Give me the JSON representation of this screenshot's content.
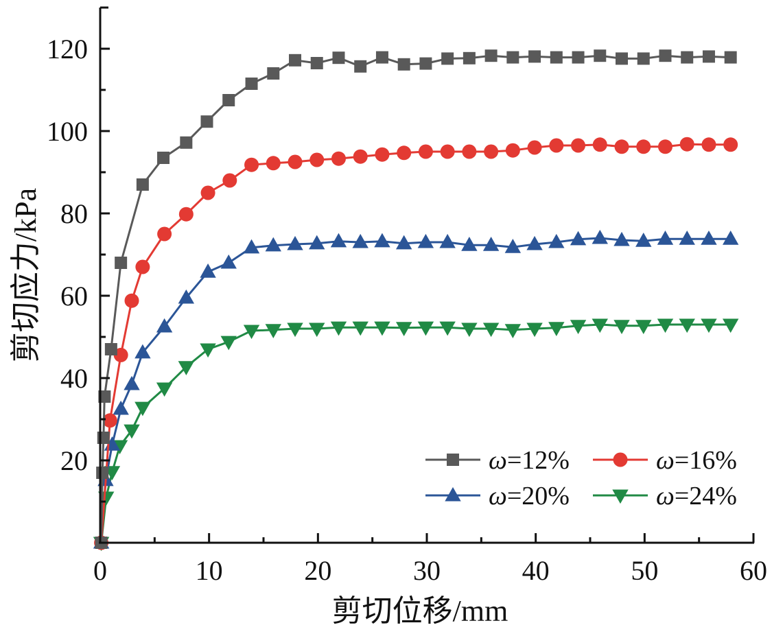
{
  "chart_data": {
    "type": "line",
    "title": "",
    "xlabel": "剪切位移/mm",
    "ylabel": "剪切应力/kPa",
    "xlim": [
      0,
      60
    ],
    "ylim": [
      0,
      130
    ],
    "x_ticks": [
      0,
      10,
      20,
      30,
      40,
      50,
      60
    ],
    "x_tick_labels": [
      "0",
      "10",
      "20",
      "30",
      "40",
      "50",
      "60"
    ],
    "x_minor_step": 5,
    "y_ticks": [
      20,
      40,
      60,
      80,
      100,
      120
    ],
    "y_tick_labels": [
      "20",
      "40",
      "60",
      "80",
      "100",
      "120"
    ],
    "y_minor_step": 10,
    "grid": false,
    "legend": {
      "position": "bottom-right",
      "columns": 2
    },
    "series": [
      {
        "name": "ω=12%",
        "legend_prefix": "ω",
        "legend_suffix": "=12%",
        "color": "#595959",
        "marker": "square",
        "x": [
          0.1,
          0.2,
          0.3,
          0.4,
          1.0,
          1.9,
          3.9,
          5.8,
          7.9,
          9.8,
          11.8,
          13.9,
          15.9,
          17.9,
          19.9,
          21.9,
          23.9,
          25.9,
          27.9,
          29.9,
          31.9,
          33.9,
          35.9,
          37.9,
          39.9,
          41.9,
          43.9,
          45.9,
          47.9,
          49.9,
          51.9,
          53.9,
          55.9,
          57.9
        ],
        "y": [
          0,
          17,
          25.5,
          35.5,
          47,
          68,
          87,
          93.5,
          97.2,
          102.3,
          107.5,
          111.5,
          114,
          117.2,
          116.5,
          117.8,
          115.7,
          117.9,
          116.2,
          116.4,
          117.6,
          117.7,
          118.3,
          117.9,
          118.1,
          117.9,
          117.9,
          118.3,
          117.6,
          117.6,
          118.3,
          117.9,
          118.1,
          117.9
        ]
      },
      {
        "name": "ω=16%",
        "legend_prefix": "ω",
        "legend_suffix": "=16%",
        "color": "#e33a33",
        "marker": "circle",
        "x": [
          0.1,
          0.9,
          1.9,
          2.9,
          3.9,
          5.9,
          7.9,
          9.9,
          11.9,
          13.9,
          15.9,
          17.9,
          19.9,
          21.9,
          23.9,
          25.9,
          27.9,
          29.9,
          31.9,
          33.9,
          35.9,
          37.9,
          39.9,
          41.9,
          43.9,
          45.9,
          47.9,
          49.9,
          51.9,
          53.9,
          55.9,
          57.9
        ],
        "y": [
          0,
          29.7,
          45.6,
          58.8,
          67,
          75,
          79.8,
          85,
          88,
          91.8,
          92.2,
          92.5,
          93,
          93.3,
          93.8,
          94.3,
          94.7,
          95,
          95,
          95,
          95,
          95.3,
          96,
          96.5,
          96.5,
          96.7,
          96.2,
          96.2,
          96.2,
          96.8,
          96.7,
          96.7
        ]
      },
      {
        "name": "ω=20%",
        "legend_prefix": "ω",
        "legend_suffix": "=20%",
        "color": "#2b5597",
        "marker": "triangle-up",
        "x": [
          0.1,
          0.5,
          1.1,
          1.9,
          2.9,
          3.9,
          5.9,
          7.9,
          9.9,
          11.8,
          13.9,
          15.9,
          17.9,
          19.9,
          21.9,
          23.9,
          25.9,
          27.9,
          29.9,
          31.9,
          33.9,
          35.9,
          37.9,
          39.9,
          41.9,
          43.9,
          45.9,
          47.9,
          49.9,
          51.9,
          53.9,
          55.9,
          57.9
        ],
        "y": [
          0,
          15.2,
          23.8,
          32.5,
          38.5,
          46.2,
          52.5,
          59.5,
          65.8,
          68,
          71.7,
          72.2,
          72.5,
          72.7,
          73.2,
          73,
          73.2,
          72.7,
          73,
          73,
          72.3,
          72.3,
          71.8,
          72.5,
          73,
          73.7,
          74,
          73.5,
          73.3,
          73.8,
          73.8,
          73.8,
          73.8
        ]
      },
      {
        "name": "ω=24%",
        "legend_prefix": "ω",
        "legend_suffix": "=24%",
        "color": "#208a45",
        "marker": "triangle-down",
        "x": [
          0.1,
          0.55,
          1.1,
          1.8,
          2.9,
          3.9,
          5.9,
          7.9,
          9.9,
          11.8,
          13.9,
          15.9,
          17.9,
          19.9,
          21.9,
          23.9,
          25.9,
          27.9,
          29.9,
          31.9,
          33.9,
          35.9,
          37.9,
          39.9,
          41.9,
          43.9,
          45.9,
          47.9,
          49.9,
          51.9,
          53.9,
          55.9,
          57.9
        ],
        "y": [
          0,
          11,
          17.2,
          23.5,
          27.3,
          32.8,
          37.5,
          42.7,
          47,
          48.8,
          51.5,
          51.7,
          52,
          52,
          52.3,
          52.3,
          52.3,
          52.2,
          52.3,
          52.3,
          52,
          52,
          51.7,
          52,
          52.2,
          52.7,
          53,
          52.7,
          52.7,
          53,
          53,
          53,
          53
        ]
      }
    ]
  }
}
